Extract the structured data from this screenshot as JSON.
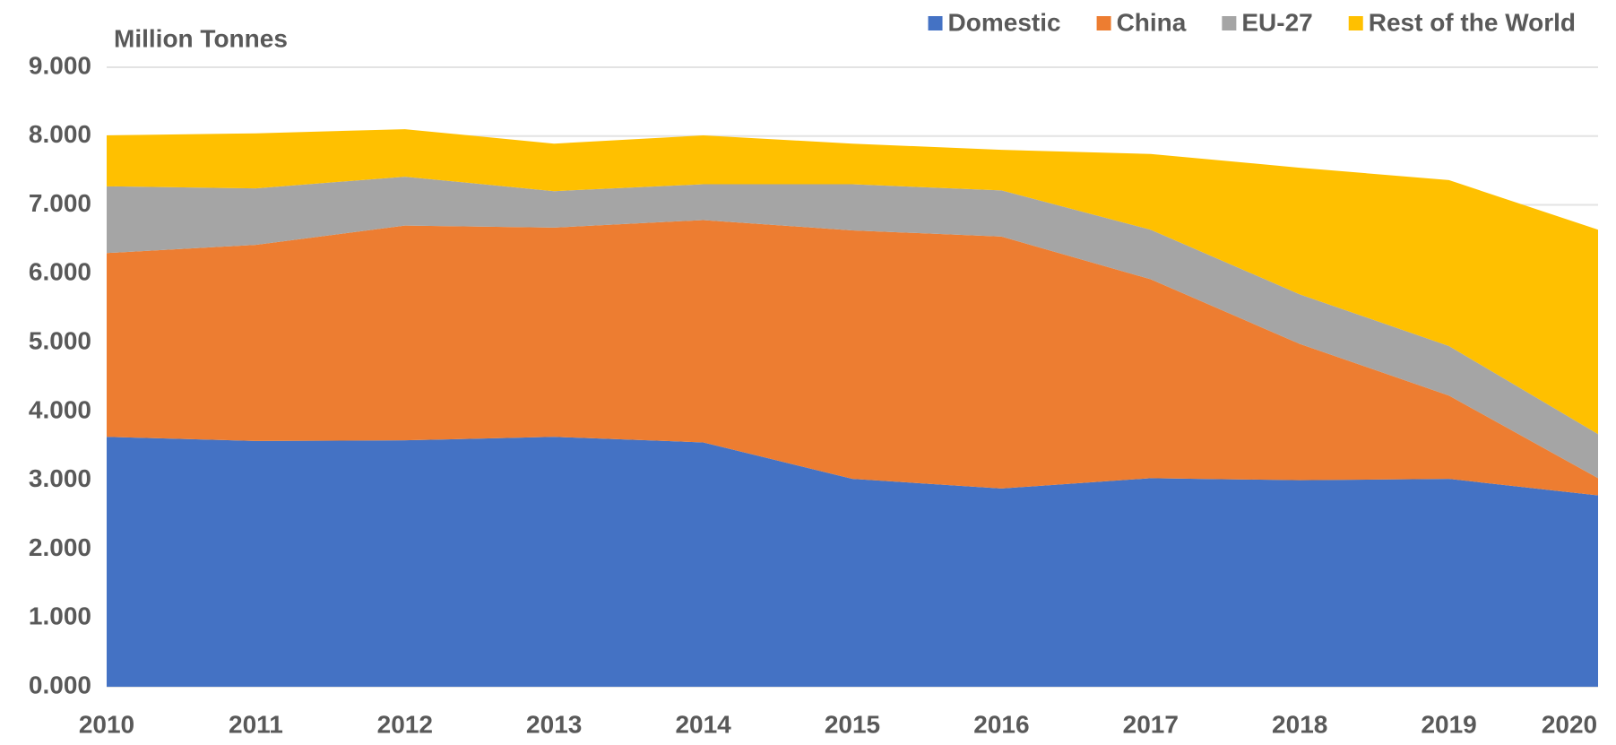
{
  "chart_data": {
    "type": "stacked_area",
    "y_axis_label": "Million Tonnes",
    "categories": [
      "2010",
      "2011",
      "2012",
      "2013",
      "2014",
      "2015",
      "2016",
      "2017",
      "2018",
      "2019",
      "2020"
    ],
    "series": [
      {
        "name": "Domestic",
        "color": "#4472c4",
        "values": [
          3.63,
          3.57,
          3.58,
          3.63,
          3.55,
          3.02,
          2.88,
          3.03,
          3.0,
          3.02,
          2.78
        ]
      },
      {
        "name": "China",
        "color": "#ed7d31",
        "values": [
          2.67,
          2.85,
          3.12,
          3.04,
          3.23,
          3.61,
          3.66,
          2.89,
          1.98,
          1.21,
          0.25
        ]
      },
      {
        "name": "EU-27",
        "color": "#a5a5a5",
        "values": [
          0.97,
          0.82,
          0.71,
          0.53,
          0.52,
          0.67,
          0.67,
          0.72,
          0.72,
          0.72,
          0.64
        ]
      },
      {
        "name": "Rest of the World",
        "color": "#ffc000",
        "values": [
          0.74,
          0.8,
          0.69,
          0.69,
          0.71,
          0.59,
          0.59,
          1.1,
          1.84,
          2.41,
          2.97
        ]
      }
    ],
    "ylim": [
      0,
      9
    ],
    "yticks": [
      {
        "value": 0,
        "label": "0.000"
      },
      {
        "value": 1,
        "label": "1.000"
      },
      {
        "value": 2,
        "label": "2.000"
      },
      {
        "value": 3,
        "label": "3.000"
      },
      {
        "value": 4,
        "label": "4.000"
      },
      {
        "value": 5,
        "label": "5.000"
      },
      {
        "value": 6,
        "label": "6.000"
      },
      {
        "value": 7,
        "label": "7.000"
      },
      {
        "value": 8,
        "label": "8.000"
      },
      {
        "value": 9,
        "label": "9.000"
      }
    ],
    "grid": true,
    "legend": "top-right"
  }
}
